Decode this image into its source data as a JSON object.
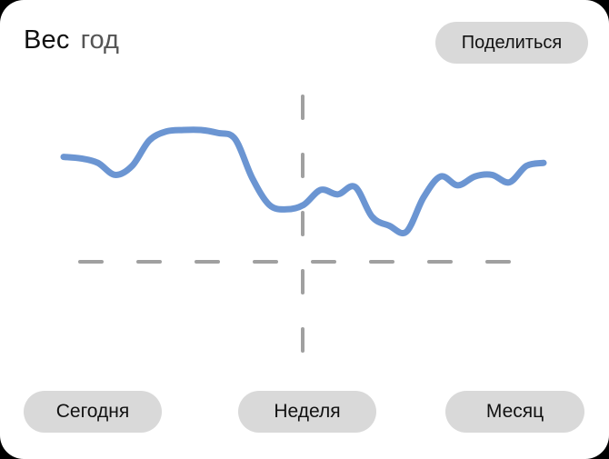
{
  "header": {
    "title": "Вес",
    "period": "год",
    "share_label": "Поделиться"
  },
  "range_buttons": [
    {
      "label": "Сегодня"
    },
    {
      "label": "Неделя"
    },
    {
      "label": "Месяц"
    }
  ],
  "colors": {
    "line": "#6b95d2",
    "guides": "#a0a0a0",
    "pill": "#d9d9d9",
    "frame": "#000000"
  },
  "chart_data": {
    "type": "line",
    "title": "",
    "xlabel": "",
    "ylabel": "",
    "grid": false,
    "series": [
      {
        "values": [
          0.72,
          0.71,
          0.68,
          0.6,
          0.66,
          0.83,
          0.89,
          0.9,
          0.9,
          0.88,
          0.84,
          0.58,
          0.4,
          0.37,
          0.4,
          0.5,
          0.47,
          0.52,
          0.32,
          0.26,
          0.22,
          0.45,
          0.59,
          0.53,
          0.59,
          0.6,
          0.55,
          0.66,
          0.68
        ]
      }
    ]
  }
}
